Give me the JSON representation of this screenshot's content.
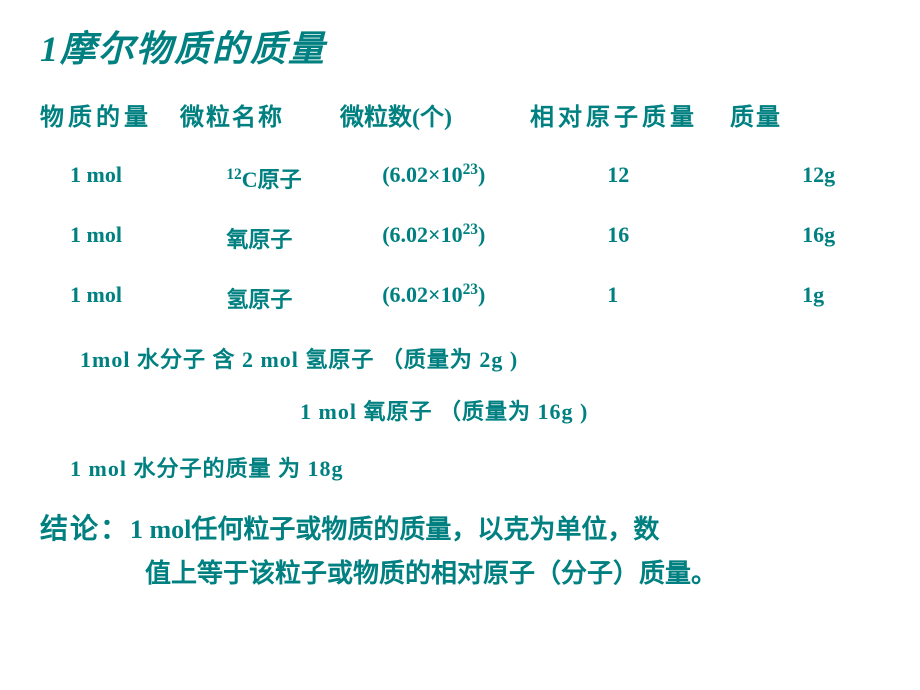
{
  "title": "1摩尔物质的质量",
  "headers": {
    "col1": "物质的量",
    "col2": "微粒名称",
    "col3": "微粒数(个)",
    "col4": "相对原子质量",
    "col5": "质量"
  },
  "rows": [
    {
      "amount": "1 mol",
      "name_pre": "12",
      "name": "C原子",
      "count": "(6.02×10",
      "count_exp": "23",
      "count_end": ")",
      "mass_rel": "12",
      "mass": "12g"
    },
    {
      "amount": "1 mol",
      "name_pre": "",
      "name": "氧原子",
      "count": "(6.02×10",
      "count_exp": "23",
      "count_end": ")",
      "mass_rel": "16",
      "mass": "16g"
    },
    {
      "amount": "1 mol",
      "name_pre": "",
      "name": "氢原子",
      "count": "(6.02×10",
      "count_exp": "23",
      "count_end": ")",
      "mass_rel": "1",
      "mass": "1g"
    }
  ],
  "note1": "1mol  水分子  含 2 mol 氢原子  （质量为 2g )",
  "note2": "1 mol 氧原子  （质量为 16g )",
  "note3": "1 mol 水分子的质量  为  18g",
  "conclusion_label": "结论：",
  "conclusion_line1": "1 mol任何粒子或物质的质量，以克为单位，数",
  "conclusion_line2": "值上等于该粒子或物质的相对原子（分子）质量。",
  "colors": {
    "text": "#008080",
    "background": "#ffffff"
  },
  "typography": {
    "title_fontsize": 36,
    "header_fontsize": 24,
    "body_fontsize": 22,
    "conclusion_fontsize": 26
  }
}
